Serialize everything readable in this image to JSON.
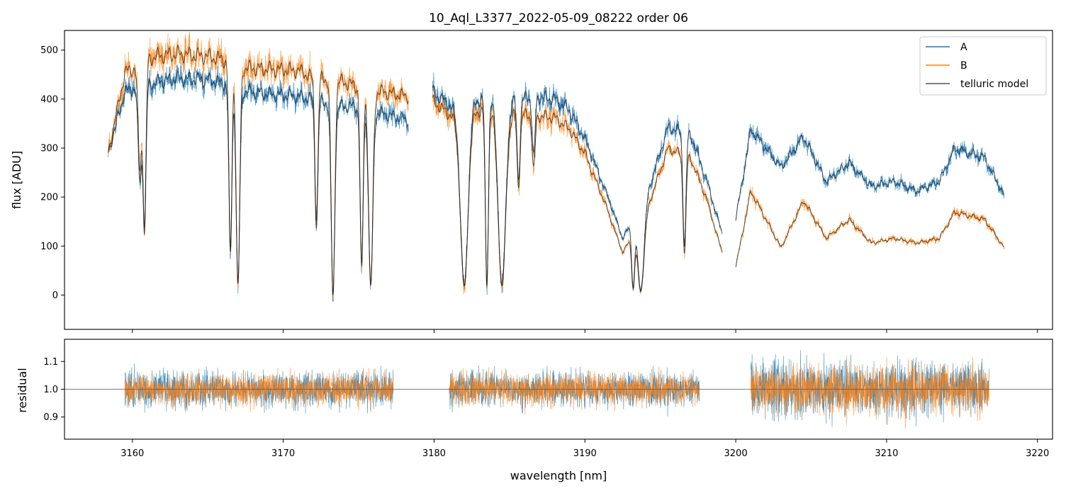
{
  "chart_data": [
    {
      "type": "line",
      "panel": "flux",
      "title": "10_Aql_L3377_2022-05-09_08222  order 06",
      "xlabel": "",
      "ylabel": "flux [ADU]",
      "xlim": [
        3155.5,
        3221
      ],
      "ylim": [
        -70,
        540
      ],
      "xticks": [
        3160,
        3170,
        3180,
        3190,
        3200,
        3210,
        3220
      ],
      "yticks": [
        0,
        100,
        200,
        300,
        400,
        500
      ],
      "ytick_labels": [
        "0",
        "100",
        "200",
        "300",
        "400",
        "500"
      ],
      "legend_position": "top-right",
      "segments": [
        {
          "x_start": 3158.4,
          "x_end": 3178.3
        },
        {
          "x_start": 3179.9,
          "x_end": 3199.1
        },
        {
          "x_start": 3200.0,
          "x_end": 3217.8
        }
      ],
      "series": [
        {
          "name": "A",
          "color": "#1f77b4",
          "continuum_points": [
            [
              3158.4,
              300
            ],
            [
              3159.5,
              430
            ],
            [
              3161.5,
              450
            ],
            [
              3163,
              458
            ],
            [
              3165,
              455
            ],
            [
              3166.5,
              445
            ],
            [
              3167.5,
              432
            ],
            [
              3169,
              425
            ],
            [
              3171,
              420
            ],
            [
              3172,
              415
            ],
            [
              3173.5,
              400
            ],
            [
              3175,
              398
            ],
            [
              3176.5,
              385
            ],
            [
              3178.3,
              370
            ],
            [
              3179.9,
              430
            ],
            [
              3181.5,
              390
            ],
            [
              3183.5,
              420
            ],
            [
              3185,
              410
            ],
            [
              3186.5,
              420
            ],
            [
              3188,
              415
            ],
            [
              3189,
              390
            ],
            [
              3190,
              330
            ],
            [
              3191.5,
              210
            ],
            [
              3192.5,
              120
            ],
            [
              3194,
              200
            ],
            [
              3195.5,
              355
            ],
            [
              3197,
              340
            ],
            [
              3198,
              250
            ],
            [
              3199.1,
              130
            ],
            [
              3200.0,
              160
            ],
            [
              3201,
              350
            ],
            [
              3203,
              270
            ],
            [
              3204.5,
              335
            ],
            [
              3206,
              240
            ],
            [
              3207.5,
              280
            ],
            [
              3209,
              230
            ],
            [
              3210.5,
              240
            ],
            [
              3212,
              220
            ],
            [
              3213.5,
              240
            ],
            [
              3214.5,
              310
            ],
            [
              3216.5,
              290
            ],
            [
              3217.8,
              210
            ]
          ],
          "absorption_lines": [
            {
              "center": 3160.5,
              "depth": 0.45,
              "width": 0.12
            },
            {
              "center": 3160.8,
              "depth": 0.7,
              "width": 0.1
            },
            {
              "center": 3166.5,
              "depth": 0.8,
              "width": 0.1
            },
            {
              "center": 3167.0,
              "depth": 0.95,
              "width": 0.12
            },
            {
              "center": 3172.2,
              "depth": 0.65,
              "width": 0.1
            },
            {
              "center": 3173.3,
              "depth": 1.0,
              "width": 0.12
            },
            {
              "center": 3175.2,
              "depth": 0.85,
              "width": 0.1
            },
            {
              "center": 3175.8,
              "depth": 0.95,
              "width": 0.14
            },
            {
              "center": 3182.0,
              "depth": 0.95,
              "width": 0.25
            },
            {
              "center": 3183.5,
              "depth": 0.95,
              "width": 0.1
            },
            {
              "center": 3184.5,
              "depth": 0.95,
              "width": 0.25
            },
            {
              "center": 3185.6,
              "depth": 0.4,
              "width": 0.1
            },
            {
              "center": 3186.6,
              "depth": 0.3,
              "width": 0.1
            },
            {
              "center": 3193.2,
              "depth": 0.9,
              "width": 0.1
            },
            {
              "center": 3193.7,
              "depth": 0.95,
              "width": 0.2
            },
            {
              "center": 3196.6,
              "depth": 0.7,
              "width": 0.1
            }
          ]
        },
        {
          "name": "B",
          "color": "#ff7f0e",
          "continuum_points": [
            [
              3158.4,
              300
            ],
            [
              3159.5,
              470
            ],
            [
              3161.5,
              505
            ],
            [
              3163,
              510
            ],
            [
              3165,
              505
            ],
            [
              3166.5,
              495
            ],
            [
              3167.5,
              480
            ],
            [
              3169,
              478
            ],
            [
              3171,
              475
            ],
            [
              3172,
              460
            ],
            [
              3173.5,
              455
            ],
            [
              3175,
              440
            ],
            [
              3176.5,
              430
            ],
            [
              3178.3,
              420
            ],
            [
              3179.9,
              410
            ],
            [
              3181.5,
              370
            ],
            [
              3183.5,
              395
            ],
            [
              3185,
              385
            ],
            [
              3186.5,
              380
            ],
            [
              3188,
              375
            ],
            [
              3189,
              350
            ],
            [
              3190,
              300
            ],
            [
              3191.5,
              180
            ],
            [
              3192.5,
              90
            ],
            [
              3194,
              170
            ],
            [
              3195.5,
              310
            ],
            [
              3197,
              290
            ],
            [
              3198,
              210
            ],
            [
              3199.1,
              90
            ],
            [
              3200.0,
              60
            ],
            [
              3201,
              220
            ],
            [
              3203,
              100
            ],
            [
              3204.5,
              200
            ],
            [
              3206,
              120
            ],
            [
              3207.5,
              160
            ],
            [
              3209,
              110
            ],
            [
              3210.5,
              120
            ],
            [
              3212,
              110
            ],
            [
              3213.5,
              120
            ],
            [
              3214.5,
              175
            ],
            [
              3216.5,
              160
            ],
            [
              3217.8,
              100
            ]
          ]
        },
        {
          "name": "telluric model",
          "color": "#555555"
        }
      ]
    },
    {
      "type": "line",
      "panel": "residual",
      "title": "",
      "xlabel": "wavelength [nm]",
      "ylabel": "residual",
      "xlim": [
        3155.5,
        3221
      ],
      "ylim": [
        0.82,
        1.18
      ],
      "xticks": [
        3160,
        3170,
        3180,
        3190,
        3200,
        3210,
        3220
      ],
      "xtick_labels": [
        "3160",
        "3170",
        "3180",
        "3190",
        "3200",
        "3210",
        "3220"
      ],
      "yticks": [
        0.9,
        1.0,
        1.1
      ],
      "ytick_labels": [
        "0.9",
        "1.0",
        "1.1"
      ],
      "reference_line": 1.0,
      "segments": [
        {
          "x_start": 3159.5,
          "x_end": 3177.3,
          "noise": 0.045
        },
        {
          "x_start": 3181.0,
          "x_end": 3197.6,
          "noise": 0.045
        },
        {
          "x_start": 3201.0,
          "x_end": 3216.8,
          "noise": 0.07
        }
      ],
      "series": [
        {
          "name": "A",
          "color": "#1f77b4"
        },
        {
          "name": "B",
          "color": "#ff7f0e"
        }
      ]
    }
  ]
}
